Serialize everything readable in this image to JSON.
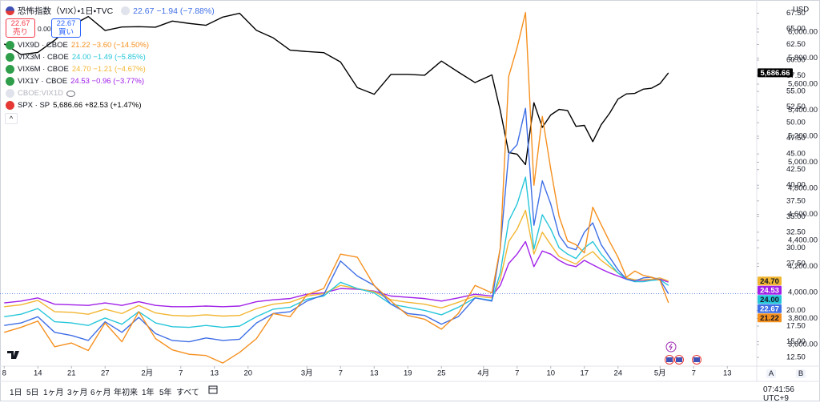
{
  "header": {
    "sell_price": "22.67",
    "sell_label": "売り",
    "spread": "0.00",
    "buy_price": "22.67",
    "buy_label": "買い"
  },
  "chart_data": {
    "type": "line",
    "currency": "USD",
    "x": [
      0,
      2,
      4,
      6,
      8,
      10,
      12,
      14,
      16,
      18,
      20,
      22,
      24,
      26,
      28,
      30,
      32,
      34,
      36,
      38,
      40,
      42,
      44,
      46,
      48,
      50,
      52,
      54,
      56,
      58,
      59,
      60,
      61,
      62,
      63,
      64,
      65,
      66,
      67,
      68,
      69,
      70,
      71,
      72,
      73,
      74,
      75,
      76,
      77,
      78,
      79
    ],
    "xlim": [
      -0.5,
      89.5
    ],
    "xticks": [
      {
        "value": 0,
        "label": "8"
      },
      {
        "value": 4,
        "label": "14"
      },
      {
        "value": 8,
        "label": "21"
      },
      {
        "value": 12,
        "label": "27"
      },
      {
        "value": 17,
        "label": "2月"
      },
      {
        "value": 21,
        "label": "7"
      },
      {
        "value": 25,
        "label": "13"
      },
      {
        "value": 29,
        "label": "20"
      },
      {
        "value": 36,
        "label": "3月"
      },
      {
        "value": 40,
        "label": "7"
      },
      {
        "value": 44,
        "label": "13"
      },
      {
        "value": 48,
        "label": "19"
      },
      {
        "value": 52,
        "label": "25"
      },
      {
        "value": 57,
        "label": "4月"
      },
      {
        "value": 61,
        "label": "7"
      },
      {
        "value": 65,
        "label": "10"
      },
      {
        "value": 69,
        "label": "17"
      },
      {
        "value": 73,
        "label": "24"
      },
      {
        "value": 78,
        "label": "5月"
      },
      {
        "value": 82,
        "label": "7"
      },
      {
        "value": 86,
        "label": "13"
      }
    ],
    "ylim": [
      11.1,
      69.6
    ],
    "yticks": [
      {
        "value": 12.5,
        "label": "12.50"
      },
      {
        "value": 15,
        "label": "15.00"
      },
      {
        "value": 17.5,
        "label": "17.50"
      },
      {
        "value": 20,
        "label": "20.00"
      },
      {
        "value": 27.5,
        "label": "27.50"
      },
      {
        "value": 30,
        "label": "30.00"
      },
      {
        "value": 32.5,
        "label": "32.50"
      },
      {
        "value": 35,
        "label": "35.00"
      },
      {
        "value": 37.5,
        "label": "37.50"
      },
      {
        "value": 40,
        "label": "40.00"
      },
      {
        "value": 42.5,
        "label": "42.50"
      },
      {
        "value": 45,
        "label": "45.00"
      },
      {
        "value": 47.5,
        "label": "47.50"
      },
      {
        "value": 50,
        "label": "50.00"
      },
      {
        "value": 52.5,
        "label": "52.50"
      },
      {
        "value": 55,
        "label": "55.00"
      },
      {
        "value": 57.5,
        "label": "57.50"
      },
      {
        "value": 60,
        "label": "60.00"
      },
      {
        "value": 62.5,
        "label": "62.50"
      },
      {
        "value": 65,
        "label": "65.00"
      },
      {
        "value": 67.5,
        "label": "67.50"
      }
    ],
    "y2lim": [
      3434,
      6246
    ],
    "y2ticks": [
      {
        "value": 3600,
        "label": "3,600.00"
      },
      {
        "value": 3800,
        "label": "3,800.00"
      },
      {
        "value": 4000,
        "label": "4,000.00"
      },
      {
        "value": 4200,
        "label": "4,200.00"
      },
      {
        "value": 4400,
        "label": "4,400.00"
      },
      {
        "value": 4600,
        "label": "4,600.00"
      },
      {
        "value": 4800,
        "label": "4,800.00"
      },
      {
        "value": 5000,
        "label": "5,000.00"
      },
      {
        "value": 5200,
        "label": "5,200.00"
      },
      {
        "value": 5400,
        "label": "5,400.00"
      },
      {
        "value": 5600,
        "label": "5,600.00"
      },
      {
        "value": 5800,
        "label": "5,800.00"
      },
      {
        "value": 6000,
        "label": "6,000.00"
      }
    ],
    "grid": false,
    "series": [
      {
        "name": "恐怖指数（VIX）・1日・TVC",
        "legend_value": "22.67 −1.94 (−7.88%)",
        "price_tag": "22.67",
        "color": "#3f6fe6",
        "values": [
          17.6,
          18.0,
          19.0,
          16.5,
          16.0,
          15.2,
          18.2,
          16.5,
          18.9,
          16.3,
          15.2,
          15.0,
          15.6,
          15.2,
          15.4,
          18.0,
          19.5,
          19.8,
          21.5,
          22.5,
          27.9,
          25.5,
          24.0,
          21.0,
          19.5,
          19.2,
          17.8,
          19.0,
          22.0,
          21.5,
          30.0,
          45.0,
          46.5,
          52.3,
          33.6,
          40.7,
          37.0,
          32.0,
          30.1,
          29.7,
          32.5,
          34.0,
          30.5,
          28.5,
          26.5,
          25.0,
          24.7,
          25.2,
          25.3,
          24.9,
          22.67
        ]
      },
      {
        "name": "VIX9D · CBOE",
        "legend_value": "21.22 −3.60 (−14.50%)",
        "price_tag": "21.22",
        "color": "#f5901e",
        "values": [
          16.5,
          17.3,
          18.3,
          14.2,
          14.8,
          13.6,
          18.0,
          15.0,
          19.8,
          15.5,
          13.7,
          13.0,
          12.8,
          11.6,
          13.3,
          15.5,
          19.5,
          19.0,
          22.5,
          23.5,
          29.0,
          28.5,
          24.0,
          21.5,
          19.2,
          18.6,
          17.0,
          19.5,
          24.0,
          22.8,
          30.0,
          57.4,
          62.0,
          67.6,
          40.0,
          51.0,
          42.6,
          35.0,
          31.1,
          30.5,
          29.2,
          36.5,
          33.7,
          31.0,
          28.5,
          25.3,
          26.3,
          25.6,
          25.3,
          24.8,
          21.22
        ]
      },
      {
        "name": "VIX3M · CBOE",
        "legend_value": "24.00 −1.49 (−5.85%)",
        "price_tag": "24.00",
        "color": "#26c6da",
        "values": [
          19.0,
          19.4,
          20.3,
          18.2,
          18.0,
          17.6,
          18.8,
          17.8,
          19.8,
          18.0,
          17.4,
          17.3,
          17.6,
          17.3,
          17.5,
          19.0,
          20.2,
          20.5,
          21.8,
          22.3,
          24.5,
          23.5,
          22.8,
          21.0,
          20.5,
          20.0,
          19.3,
          20.5,
          22.0,
          21.6,
          26.0,
          34.3,
          37.0,
          41.3,
          29.8,
          35.3,
          33.0,
          30.0,
          29.0,
          28.3,
          30.0,
          31.0,
          29.0,
          27.5,
          26.0,
          25.0,
          24.6,
          24.6,
          24.8,
          24.9,
          24.0
        ]
      },
      {
        "name": "VIX6M · CBOE",
        "legend_value": "24.70 −1.21 (−4.67%)",
        "price_tag": "24.70",
        "color": "#f2b632",
        "values": [
          20.6,
          20.9,
          21.6,
          19.8,
          19.7,
          19.4,
          20.2,
          19.5,
          20.8,
          19.6,
          19.2,
          19.1,
          19.3,
          19.1,
          19.2,
          20.3,
          21.0,
          21.3,
          22.3,
          22.7,
          24.0,
          23.5,
          23.0,
          21.7,
          21.3,
          21.0,
          20.4,
          21.3,
          22.3,
          22.0,
          25.0,
          31.0,
          33.0,
          36.0,
          29.0,
          32.5,
          30.5,
          28.6,
          28.0,
          27.4,
          28.6,
          29.4,
          28.0,
          27.0,
          26.0,
          25.2,
          24.9,
          24.9,
          25.0,
          25.2,
          24.7
        ]
      },
      {
        "name": "VIX1Y · CBOE",
        "legend_value": "24.53 −0.96 (−3.77%)",
        "price_tag": "24.53",
        "color": "#a020e8",
        "values": [
          21.2,
          21.5,
          22.0,
          21.0,
          20.9,
          20.8,
          21.2,
          20.8,
          21.4,
          20.8,
          20.6,
          20.6,
          20.7,
          20.6,
          20.7,
          21.4,
          21.7,
          21.9,
          22.6,
          22.8,
          23.5,
          23.4,
          23.1,
          22.3,
          22.1,
          21.9,
          21.5,
          22.0,
          22.6,
          22.3,
          24.0,
          27.5,
          29.0,
          31.0,
          27.0,
          29.5,
          29.0,
          28.0,
          27.3,
          27.0,
          28.0,
          27.3,
          26.6,
          26.0,
          25.5,
          25.0,
          24.8,
          24.8,
          24.9,
          25.0,
          24.53
        ]
      },
      {
        "name": "SPX · SP",
        "legend_value": "5,686.66 +82.53 (+1.47%)",
        "price_tag": "5,686.66",
        "color": "#000000",
        "axis": "y2",
        "values": [
          5909,
          5827,
          5843,
          5937,
          6049,
          6119,
          6012,
          6039,
          6041,
          6037,
          6084,
          6066,
          6052,
          6115,
          6144,
          6013,
          5955,
          5861,
          5850,
          5842,
          5770,
          5573,
          5522,
          5675,
          5675,
          5668,
          5777,
          5693,
          5612,
          5671,
          5397,
          5074,
          5062,
          4982,
          5457,
          5268,
          5363,
          5406,
          5397,
          5276,
          5283,
          5158,
          5288,
          5376,
          5485,
          5525,
          5529,
          5561,
          5569,
          5604,
          5686.66
        ]
      }
    ],
    "hidden_series": "CBOE:VIX1D"
  },
  "toolbar": {
    "ranges": [
      "1日",
      "5日",
      "1ヶ月",
      "3ヶ月",
      "6ヶ月",
      "年初来",
      "1年",
      "5年",
      "すべて"
    ],
    "time": "07:41:56 UTC+9"
  },
  "axis_buttons": [
    "A",
    "B"
  ]
}
